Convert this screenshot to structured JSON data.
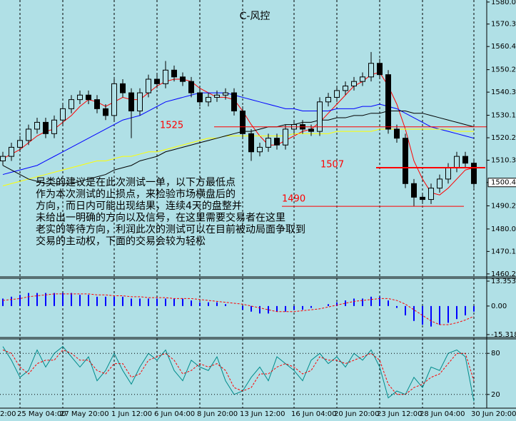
{
  "chart_data": [
    {
      "type": "candlestick",
      "title": "C-风控",
      "categories": [
        "2:00",
        null,
        "25 May 04:00",
        null,
        null,
        null,
        null,
        "27 May 20:00",
        null,
        null,
        null,
        null,
        null,
        "1 Jun 12:00",
        null,
        null,
        null,
        null,
        "6 Jun 04:00",
        null,
        null,
        null,
        null,
        "8 Jun 20:00",
        null,
        null,
        null,
        null,
        "13 Jun 12:00",
        null,
        null,
        null,
        null,
        null,
        "16 Jun 04:00",
        null,
        null,
        null,
        null,
        "20 Jun 20:00",
        null,
        null,
        null,
        null,
        "23 Jun 12:00",
        null,
        null,
        null,
        null,
        "28 Jun 04:00",
        null,
        null,
        null,
        null,
        null,
        "30 Jun 20:00"
      ],
      "open": [
        1510,
        1512,
        1516,
        1519,
        1524,
        1527,
        1522,
        1528,
        1533,
        1537,
        1539,
        1537,
        1533,
        1530,
        1544,
        1540,
        1532,
        1540,
        1546,
        1544,
        1550,
        1547,
        1545,
        1540,
        1536,
        1538,
        1539,
        1540,
        1532,
        1522,
        1514,
        1516,
        1520,
        1517,
        1524,
        1526,
        1524,
        1523,
        1536,
        1538,
        1541,
        1543,
        1545,
        1547,
        1553,
        1548,
        1524,
        1520,
        1500,
        1494,
        1493,
        1498,
        1502,
        1507,
        1512,
        1509
      ],
      "high": [
        1514,
        1518,
        1521,
        1526,
        1529,
        1529,
        1530,
        1535,
        1539,
        1541,
        1541,
        1539,
        1535,
        1547,
        1546,
        1542,
        1542,
        1548,
        1548,
        1554,
        1552,
        1549,
        1547,
        1542,
        1540,
        1541,
        1542,
        1542,
        1534,
        1524,
        1518,
        1522,
        1522,
        1526,
        1528,
        1528,
        1526,
        1538,
        1540,
        1543,
        1545,
        1547,
        1549,
        1558,
        1555,
        1550,
        1526,
        1522,
        1502,
        1496,
        1500,
        1504,
        1509,
        1514,
        1514,
        1511
      ],
      "low": [
        1508,
        1510,
        1514,
        1517,
        1522,
        1520,
        1520,
        1526,
        1531,
        1535,
        1535,
        1531,
        1528,
        1528,
        1538,
        1520,
        1530,
        1538,
        1542,
        1542,
        1545,
        1543,
        1538,
        1534,
        1534,
        1536,
        1537,
        1530,
        1520,
        1510,
        1512,
        1514,
        1515,
        1515,
        1522,
        1522,
        1521,
        1521,
        1534,
        1536,
        1539,
        1541,
        1543,
        1545,
        1546,
        1522,
        1518,
        1498,
        1490,
        1491,
        1491,
        1496,
        1500,
        1505,
        1507,
        1498
      ],
      "close": [
        1512,
        1516,
        1519,
        1524,
        1527,
        1522,
        1528,
        1533,
        1537,
        1539,
        1537,
        1533,
        1530,
        1544,
        1540,
        1532,
        1540,
        1546,
        1544,
        1550,
        1547,
        1545,
        1540,
        1536,
        1538,
        1539,
        1540,
        1532,
        1522,
        1514,
        1516,
        1520,
        1517,
        1524,
        1526,
        1524,
        1523,
        1536,
        1538,
        1541,
        1543,
        1545,
        1547,
        1553,
        1548,
        1524,
        1520,
        1500,
        1494,
        1493,
        1498,
        1502,
        1507,
        1512,
        1509,
        1500
      ],
      "up_color": "#b0e0e6",
      "down_color": "#000000",
      "series": [
        {
          "color": "#ff0000",
          "values": [
            1511,
            1513,
            1515,
            1518,
            1521,
            1523,
            1524,
            1527,
            1530,
            1534,
            1537,
            1536,
            1534,
            1536,
            1538,
            1537,
            1537,
            1540,
            1543,
            1545,
            1546,
            1546,
            1545,
            1542,
            1540,
            1538,
            1538,
            1537,
            1532,
            1526,
            1521,
            1517,
            1517,
            1519,
            1521,
            1523,
            1524,
            1527,
            1531,
            1535,
            1539,
            1543,
            1545,
            1548,
            1549,
            1543,
            1535,
            1524,
            1510,
            1502,
            1496,
            1495,
            1498,
            1502,
            1506,
            1507
          ]
        },
        {
          "color": "#0000ff",
          "values": [
            1504,
            1505,
            1506,
            1507,
            1508,
            1510,
            1512,
            1514,
            1516,
            1518,
            1520,
            1522,
            1524,
            1526,
            1528,
            1529,
            1530,
            1532,
            1534,
            1536,
            1537,
            1538,
            1539,
            1540,
            1540,
            1540,
            1540,
            1539,
            1538,
            1537,
            1536,
            1535,
            1534,
            1533,
            1533,
            1532,
            1532,
            1532,
            1532,
            1533,
            1533,
            1533,
            1534,
            1534,
            1535,
            1534,
            1533,
            1531,
            1529,
            1527,
            1525,
            1524,
            1523,
            1522,
            1521,
            1520
          ]
        },
        {
          "color": "#ffff00",
          "values": [
            1499,
            1500,
            1501,
            1502,
            1503,
            1504,
            1505,
            1506,
            1507,
            1508,
            1509,
            1510,
            1510,
            1511,
            1512,
            1512,
            1513,
            1514,
            1514,
            1515,
            1516,
            1517,
            1518,
            1519,
            1520,
            1520,
            1521,
            1521,
            1521,
            1521,
            1521,
            1521,
            1521,
            1521,
            1522,
            1522,
            1522,
            1522,
            1522,
            1523,
            1523,
            1523,
            1523,
            1523,
            1524,
            1524,
            1524,
            1524,
            1524,
            1524,
            1524,
            1524,
            1524,
            1523,
            1523,
            1523
          ]
        },
        {
          "color": "#000000",
          "values": [
            1508,
            1506,
            1504,
            1502,
            1501,
            1500,
            1500,
            1500,
            1500,
            1501,
            1502,
            1503,
            1504,
            1506,
            1507,
            1508,
            1510,
            1511,
            1512,
            1514,
            1515,
            1516,
            1517,
            1518,
            1519,
            1520,
            1521,
            1522,
            1523,
            1523,
            1524,
            1525,
            1525,
            1526,
            1526,
            1527,
            1527,
            1528,
            1528,
            1529,
            1529,
            1530,
            1530,
            1531,
            1531,
            1532,
            1532,
            1532,
            1531,
            1531,
            1530,
            1529,
            1528,
            1527,
            1526,
            1525
          ]
        }
      ],
      "levels": [
        1525,
        1507,
        1490
      ],
      "level_color": "#ff0000",
      "annotations": [
        "另类的建议是在此次测试一单，以下方最低点",
        "作为本次测试的止损点，来检验市场横盘后的",
        "方向，而日内可能出现结果，连续4天的盘整并",
        "未给出一明确的方向以及信号，在这里需要交易者在这里",
        "老实的等待方向，利润此次的测试可以在目前被动局面争取到",
        "交易的主动权，下面的交易会较为轻松"
      ],
      "ylim": [
        1458.9,
        1580.9
      ],
      "yticks": [
        {
          "value": 1580,
          "label": "1580.00"
        },
        {
          "value": 1570.3,
          "label": "1570.30"
        },
        {
          "value": 1560.4,
          "label": "1560.40"
        },
        {
          "value": 1550.2,
          "label": "1550.20"
        },
        {
          "value": 1540.3,
          "label": "1540.30"
        },
        {
          "value": 1530.1,
          "label": "1530.10"
        },
        {
          "value": 1520.2,
          "label": "1520.20"
        },
        {
          "value": 1510.3,
          "label": "1510.30"
        },
        1500.49,
        {
          "value": 1490.2,
          "label": "1490.20"
        },
        {
          "value": 1480,
          "label": "1480.00"
        },
        {
          "value": 1470.1,
          "label": "1470.10"
        },
        {
          "value": 1460.2,
          "label": "1460.20"
        }
      ]
    },
    {
      "type": "macd",
      "ylim": [
        -16.5,
        14.5
      ],
      "yticks": [
        13.353,
        {
          "value": 0,
          "label": "0.00"
        },
        -15.318
      ],
      "series": [
        {
          "color": "#0000ff",
          "values": [
            4,
            5,
            6,
            7,
            7,
            7,
            7,
            7,
            7,
            6,
            6,
            5,
            5,
            5,
            5,
            4,
            4,
            4,
            4,
            4,
            4,
            4,
            3,
            2,
            2,
            2,
            1,
            0,
            -2,
            -3,
            -4,
            -4,
            -3,
            -3,
            -2,
            -2,
            -1,
            0,
            1,
            2,
            3,
            4,
            4,
            5,
            5,
            3,
            -1,
            -5,
            -8,
            -10,
            -11,
            -10,
            -9,
            -7,
            -5,
            -3
          ]
        },
        {
          "color": "#ff0000",
          "values": [
            3,
            3.5,
            4,
            5,
            5.5,
            6,
            6.5,
            6.5,
            6.5,
            6.5,
            6.5,
            6,
            6,
            5.5,
            5.5,
            5,
            5,
            4.5,
            4.5,
            4.5,
            4,
            4,
            4,
            3.5,
            3,
            2.5,
            2,
            1.5,
            1,
            0,
            -1,
            -2,
            -3,
            -3,
            -3,
            -2.5,
            -2,
            -1.5,
            -0.5,
            0.5,
            1.5,
            2.5,
            3,
            3.5,
            4,
            4,
            3,
            1,
            -2,
            -5,
            -8,
            -10,
            -10,
            -9,
            -7.5,
            -5.5
          ]
        }
      ]
    },
    {
      "type": "line",
      "ylim": [
        0,
        100
      ],
      "yticks": [
        20,
        80
      ],
      "series": [
        {
          "color": "#008b8b",
          "values": [
            90,
            70,
            45,
            55,
            85,
            60,
            80,
            90,
            75,
            60,
            75,
            40,
            55,
            80,
            55,
            35,
            60,
            80,
            70,
            85,
            55,
            40,
            70,
            60,
            55,
            75,
            40,
            20,
            25,
            45,
            60,
            40,
            75,
            65,
            55,
            40,
            70,
            80,
            65,
            75,
            60,
            80,
            70,
            85,
            60,
            15,
            25,
            20,
            45,
            30,
            60,
            55,
            80,
            85,
            75,
            10
          ]
        },
        {
          "color": "#ff0000",
          "values": [
            85,
            80,
            60,
            50,
            65,
            70,
            70,
            85,
            80,
            70,
            70,
            55,
            50,
            65,
            65,
            45,
            50,
            70,
            75,
            80,
            70,
            50,
            55,
            65,
            60,
            65,
            55,
            30,
            25,
            30,
            50,
            50,
            60,
            65,
            60,
            50,
            55,
            75,
            70,
            70,
            65,
            70,
            75,
            80,
            70,
            35,
            20,
            20,
            30,
            35,
            45,
            50,
            65,
            80,
            80,
            40
          ]
        }
      ]
    }
  ]
}
